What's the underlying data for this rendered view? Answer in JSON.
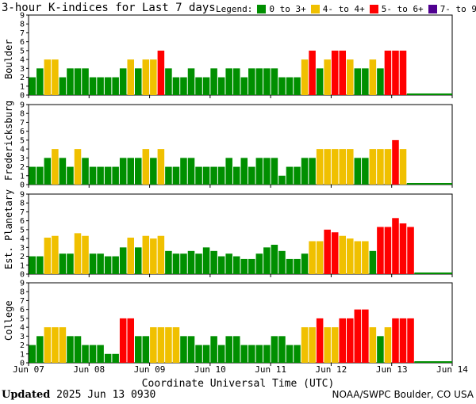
{
  "title": "3-hour K-indices for Last 7 days",
  "legend": {
    "label": "Legend:",
    "items": [
      {
        "label": "0 to 3+",
        "color": "#008f00"
      },
      {
        "label": "4- to 4+",
        "color": "#f0c000"
      },
      {
        "label": "5- to 6+",
        "color": "#ff0000"
      },
      {
        "label": "7- to 9",
        "color": "#500090"
      }
    ]
  },
  "xlabel": "Coordinate Universal Time (UTC)",
  "footer": {
    "updated_label": "Updated",
    "updated_value": "2025 Jun 13 0930",
    "credit": "NOAA/SWPC Boulder, CO USA"
  },
  "chart_data": [
    {
      "type": "bar",
      "station": "Boulder",
      "ylim": [
        0,
        9
      ],
      "yticks": [
        0,
        1,
        2,
        3,
        4,
        5,
        6,
        7,
        8,
        9
      ],
      "xticks": [
        "Jun 07",
        "Jun 08",
        "Jun 09",
        "Jun 10",
        "Jun 11",
        "Jun 12",
        "Jun 13",
        "Jun 14"
      ],
      "interval_hours": 3,
      "values": [
        2,
        3,
        4,
        4,
        2,
        3,
        3,
        3,
        2,
        2,
        2,
        2,
        3,
        4,
        3,
        4,
        4,
        5,
        3,
        2,
        2,
        3,
        2,
        2,
        3,
        2,
        3,
        3,
        2,
        3,
        3,
        3,
        3,
        2,
        2,
        2,
        4,
        5,
        3,
        4,
        5,
        5,
        4,
        3,
        3,
        4,
        3,
        5,
        5,
        5
      ]
    },
    {
      "type": "bar",
      "station": "Fredericksburg",
      "ylim": [
        0,
        9
      ],
      "yticks": [
        0,
        1,
        2,
        3,
        4,
        5,
        6,
        7,
        8,
        9
      ],
      "xticks": [
        "Jun 07",
        "Jun 08",
        "Jun 09",
        "Jun 10",
        "Jun 11",
        "Jun 12",
        "Jun 13",
        "Jun 14"
      ],
      "interval_hours": 3,
      "values": [
        2,
        2,
        3,
        4,
        3,
        2,
        4,
        3,
        2,
        2,
        2,
        2,
        3,
        3,
        3,
        4,
        3,
        4,
        2,
        2,
        3,
        3,
        2,
        2,
        2,
        2,
        3,
        2,
        3,
        2,
        3,
        3,
        3,
        1,
        2,
        2,
        3,
        3,
        4,
        4,
        4,
        4,
        4,
        3,
        3,
        4,
        4,
        4,
        5,
        4
      ]
    },
    {
      "type": "bar",
      "station": "Est. Planetary",
      "ylim": [
        0,
        9
      ],
      "yticks": [
        0,
        1,
        2,
        3,
        4,
        5,
        6,
        7,
        8,
        9
      ],
      "xticks": [
        "Jun 07",
        "Jun 08",
        "Jun 09",
        "Jun 10",
        "Jun 11",
        "Jun 12",
        "Jun 13",
        "Jun 14"
      ],
      "interval_hours": 3,
      "values": [
        2,
        2,
        4.1,
        4.3,
        2.3,
        2.3,
        4.6,
        4.3,
        2.3,
        2.3,
        2,
        2,
        3,
        4.1,
        3,
        4.3,
        4,
        4.3,
        2.6,
        2.3,
        2.3,
        2.6,
        2.3,
        3,
        2.6,
        2,
        2.3,
        2,
        1.7,
        1.7,
        2.3,
        3,
        3.3,
        2.6,
        1.7,
        1.7,
        2.3,
        3.7,
        3.7,
        5,
        4.7,
        4.3,
        4,
        3.7,
        3.7,
        2.6,
        5.3,
        5.3,
        6.3,
        5.7,
        5.3
      ]
    },
    {
      "type": "bar",
      "station": "College",
      "ylim": [
        0,
        9
      ],
      "yticks": [
        0,
        1,
        2,
        3,
        4,
        5,
        6,
        7,
        8,
        9
      ],
      "xticks": [
        "Jun 07",
        "Jun 08",
        "Jun 09",
        "Jun 10",
        "Jun 11",
        "Jun 12",
        "Jun 13",
        "Jun 14"
      ],
      "interval_hours": 3,
      "values": [
        2,
        3,
        4,
        4,
        4,
        3,
        3,
        2,
        2,
        2,
        1,
        1,
        5,
        5,
        3,
        3,
        4,
        4,
        4,
        4,
        3,
        3,
        2,
        2,
        3,
        2,
        3,
        3,
        2,
        2,
        2,
        2,
        3,
        3,
        2,
        2,
        4,
        4,
        5,
        4,
        4,
        5,
        5,
        6,
        6,
        4,
        3,
        4,
        5,
        5,
        5
      ]
    }
  ]
}
